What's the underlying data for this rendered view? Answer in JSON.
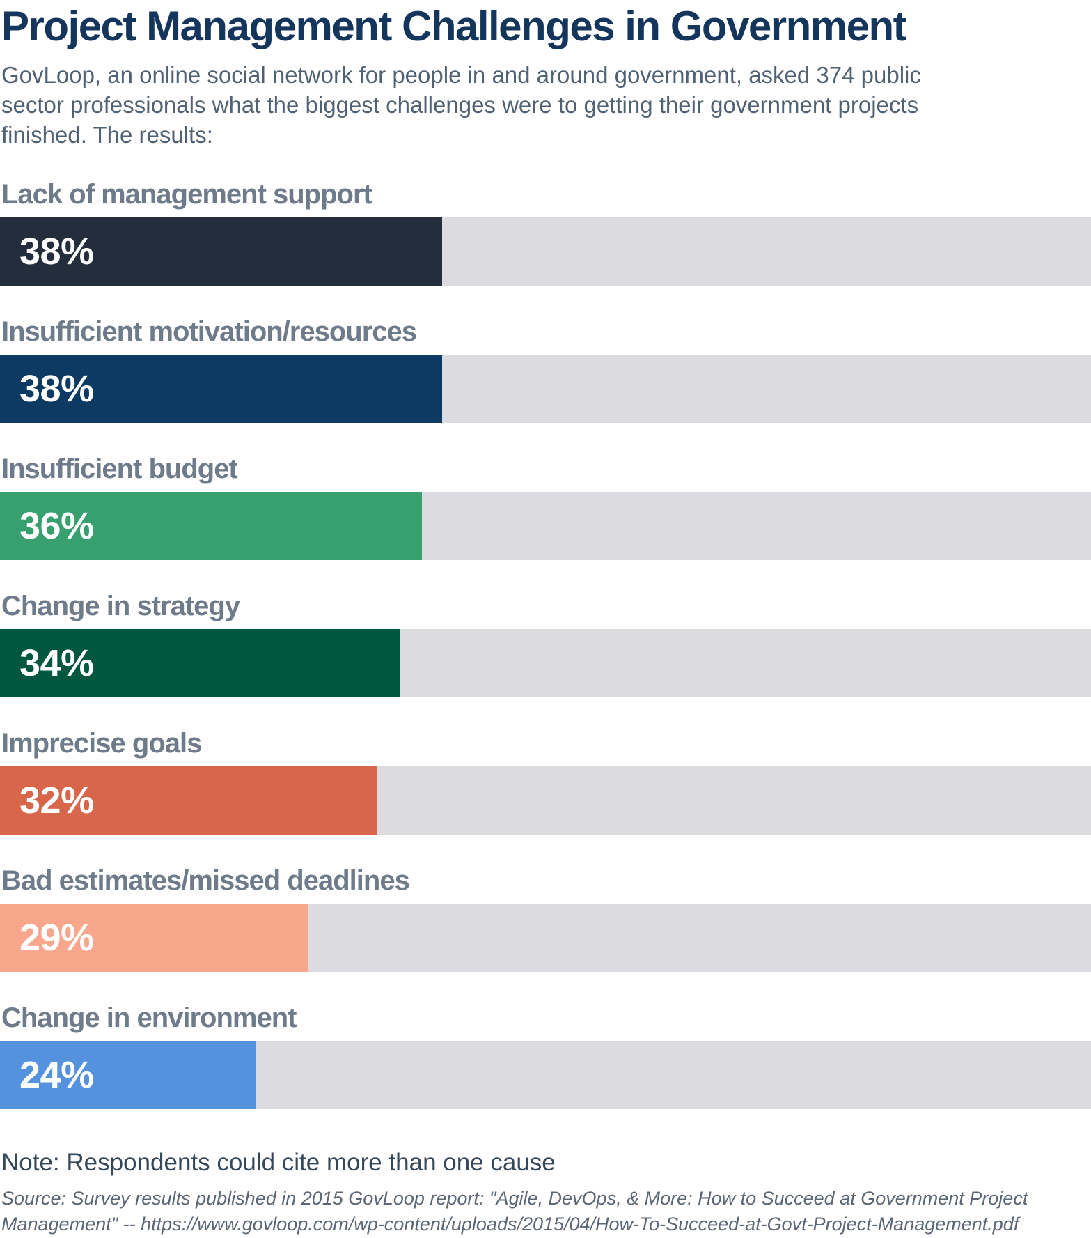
{
  "header": {
    "title": "Project Management Challenges in Government",
    "subtitle": "GovLoop, an online social network for people in and around government, asked 374 public\nsector professionals what the biggest challenges were to getting their government projects\nfinished. The results:"
  },
  "chart_data": {
    "type": "bar",
    "orientation": "horizontal",
    "title": "Project Management Challenges in Government",
    "categories": [
      "Lack of management support",
      "Insufficient motivation/resources",
      "Insufficient budget",
      "Change in strategy",
      "Imprecise goals",
      "Bad estimates/missed deadlines",
      "Change in environment"
    ],
    "values": [
      38,
      38,
      36,
      34,
      32,
      29,
      24
    ],
    "unit": "%",
    "value_labels": [
      "38%",
      "38%",
      "36%",
      "34%",
      "32%",
      "29%",
      "24%"
    ],
    "xlim": [
      0,
      100
    ],
    "bar_colors": [
      "#232d3b",
      "#0d3a62",
      "#37a06e",
      "#00573f",
      "#d8664a",
      "#f8a78c",
      "#5592de"
    ],
    "track_color": "#dcdce0",
    "layout": {
      "grid": false,
      "legend": false,
      "labels_above_bars": true,
      "value_labels_inside_left": true,
      "bar_fill_width_pct_of_track": [
        40.5,
        40.5,
        38.7,
        36.7,
        34.5,
        28.3,
        23.5
      ]
    }
  },
  "footer": {
    "note": "Note: Respondents could cite more than one cause",
    "source": "Source: Survey results published in 2015 GovLoop report: \"Agile, DevOps, & More: How to Succeed at Government Project\nManagement\"  -- https://www.govloop.com/wp-content/uploads/2015/04/How-To-Succeed-at-Govt-Project-Management.pdf"
  },
  "colors": {
    "title": "#14365c",
    "subtitle": "#4f6173",
    "bar_label": "#6e7b8a",
    "value_label": "#ffffff",
    "note": "#35485a",
    "source": "#5b6775",
    "background": "#ffffff"
  }
}
